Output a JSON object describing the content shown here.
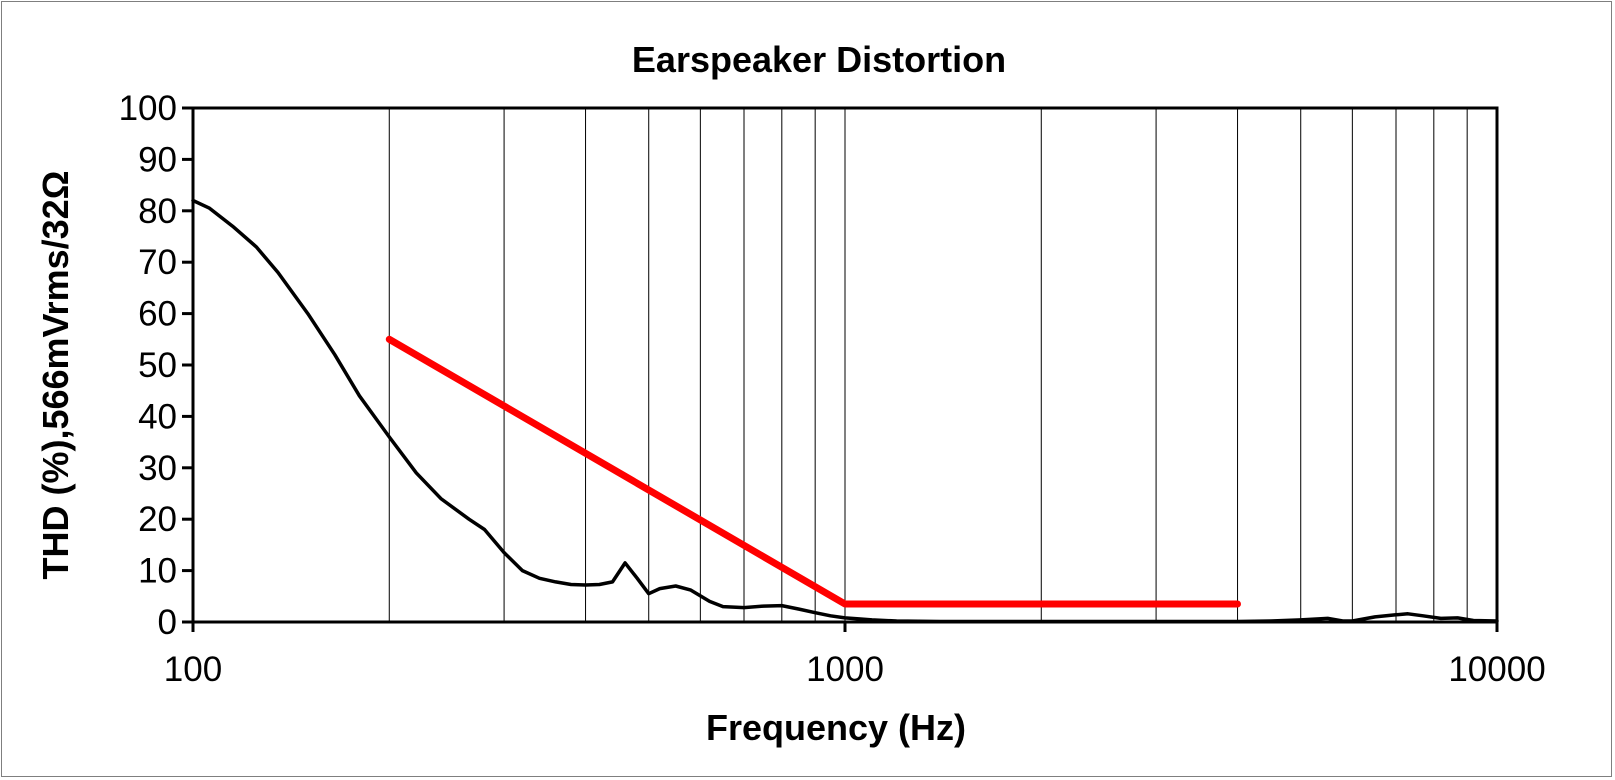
{
  "chart_data": {
    "type": "line",
    "title": "Earspeaker Distortion",
    "xlabel": "Frequency (Hz)",
    "ylabel": "THD (%),566mVrms/32Ω",
    "x_scale": "log",
    "xlim": [
      100,
      10000
    ],
    "ylim": [
      0,
      100
    ],
    "x_ticks": [
      "100",
      "1000",
      "10000"
    ],
    "y_ticks": [
      "0",
      "10",
      "20",
      "30",
      "40",
      "50",
      "60",
      "70",
      "80",
      "90",
      "100"
    ],
    "vertical_grid": true,
    "horizontal_grid": false,
    "legend": "none",
    "series": [
      {
        "color": "#000000",
        "x": [
          100,
          106,
          115,
          125,
          135,
          150,
          165,
          180,
          200,
          220,
          240,
          265,
          280,
          300,
          320,
          340,
          360,
          380,
          400,
          420,
          440,
          460,
          480,
          500,
          520,
          550,
          580,
          620,
          650,
          700,
          750,
          800,
          850,
          900,
          950,
          1000,
          1050,
          1100,
          1200,
          1400,
          2000,
          3000,
          4000,
          4500,
          5000,
          5500,
          5800,
          6000,
          6500,
          7000,
          7300,
          7700,
          8200,
          8700,
          9200,
          10000
        ],
        "y": [
          82,
          80.5,
          77,
          73,
          68,
          60,
          52,
          44,
          36,
          29,
          24,
          20,
          18,
          13.5,
          10,
          8.5,
          7.8,
          7.3,
          7.2,
          7.3,
          7.8,
          11.5,
          8.5,
          5.5,
          6.5,
          7,
          6.2,
          4,
          3,
          2.8,
          3.1,
          3.2,
          2.5,
          1.8,
          1.2,
          0.8,
          0.6,
          0.4,
          0.2,
          0.1,
          0.1,
          0.1,
          0.1,
          0.2,
          0.4,
          0.7,
          0.2,
          0.2,
          1,
          1.4,
          1.6,
          1.2,
          0.7,
          0.8,
          0.3,
          0.2
        ]
      },
      {
        "color": "#ff0000",
        "x": [
          200,
          1000,
          4000
        ],
        "y": [
          55,
          3.5,
          3.5
        ]
      }
    ]
  }
}
